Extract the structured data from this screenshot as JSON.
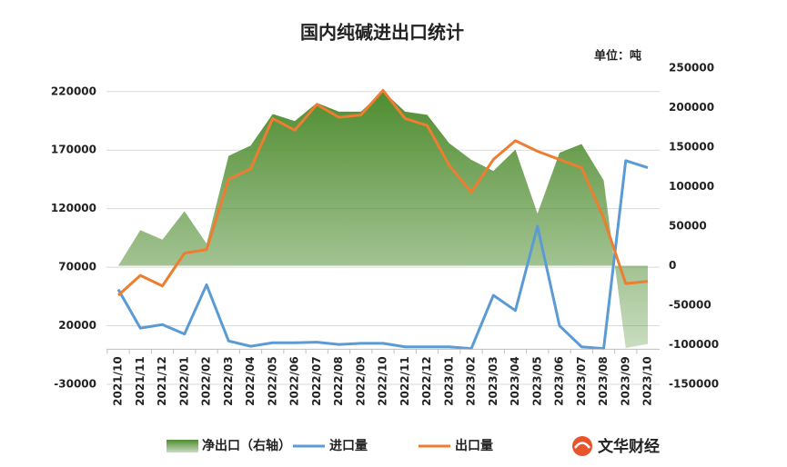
{
  "chart_data": {
    "type": "line",
    "title": "国内纯碱进出口统计",
    "unit": "单位：吨",
    "watermark": "文华财经",
    "categories": [
      "2021/10",
      "2021/11",
      "2021/12",
      "2022/01",
      "2022/02",
      "2022/03",
      "2022/04",
      "2022/05",
      "2022/06",
      "2022/07",
      "2022/08",
      "2022/09",
      "2022/10",
      "2022/11",
      "2022/12",
      "2023/01",
      "2023/02",
      "2023/03",
      "2023/04",
      "2023/05",
      "2023/06",
      "2023/07",
      "2023/08",
      "2023/09",
      "2023/10"
    ],
    "series": [
      {
        "name": "净出口（右轴）",
        "type": "area",
        "axis": "y2",
        "color": "#4e8c2f",
        "values": [
          0,
          45000,
          33000,
          69000,
          28000,
          139000,
          152000,
          192000,
          183000,
          206000,
          195000,
          195000,
          221000,
          195000,
          191000,
          155000,
          134000,
          120000,
          147000,
          66000,
          143000,
          154000,
          108000,
          -104000,
          -99000
        ]
      },
      {
        "name": "进口量",
        "type": "line",
        "color": "#5b9bd5",
        "values": [
          51000,
          18000,
          21000,
          13000,
          55000,
          7000,
          2500,
          5500,
          5500,
          6000,
          4000,
          5000,
          5000,
          2000,
          2000,
          2000,
          500,
          46000,
          33000,
          105000,
          20000,
          2000,
          500,
          161000,
          155000
        ]
      },
      {
        "name": "出口量",
        "type": "line",
        "color": "#ed7d31",
        "values": [
          46000,
          63000,
          54000,
          82000,
          85000,
          145000,
          154000,
          197000,
          187000,
          209000,
          198000,
          200000,
          221000,
          197000,
          191000,
          157000,
          134000,
          162000,
          178000,
          169000,
          162000,
          155000,
          112000,
          56000,
          58000
        ]
      }
    ],
    "ylim": [
      -30000,
      240000
    ],
    "yticks": [
      -30000,
      20000,
      70000,
      120000,
      170000,
      220000
    ],
    "y2lim": [
      -150000,
      250000
    ],
    "y2ticks": [
      -150000,
      -100000,
      -50000,
      0,
      50000,
      100000,
      150000,
      200000,
      250000
    ],
    "grid": true
  }
}
